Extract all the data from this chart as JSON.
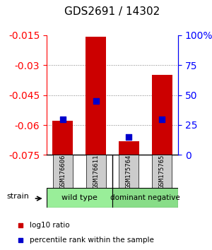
{
  "title": "GDS2691 / 14302",
  "samples": [
    "GSM176606",
    "GSM176611",
    "GSM175764",
    "GSM175765"
  ],
  "log10_ratio": [
    -0.058,
    -0.016,
    -0.068,
    -0.035
  ],
  "percentile_rank": [
    30,
    45,
    15,
    30
  ],
  "ylim_left": [
    -0.075,
    -0.015
  ],
  "ylim_right": [
    0,
    100
  ],
  "yticks_left": [
    -0.075,
    -0.06,
    -0.045,
    -0.03,
    -0.015
  ],
  "yticks_right": [
    0,
    25,
    50,
    75,
    100
  ],
  "bar_color": "#cc0000",
  "blue_color": "#0000cc",
  "bar_width": 0.6,
  "groups": [
    {
      "label": "wild type",
      "samples": [
        0,
        1
      ],
      "color": "#99ee99"
    },
    {
      "label": "dominant negative",
      "samples": [
        2,
        3
      ],
      "color": "#88dd88"
    }
  ],
  "legend_items": [
    {
      "color": "#cc0000",
      "label": "log10 ratio"
    },
    {
      "color": "#0000cc",
      "label": "percentile rank within the sample"
    }
  ],
  "strain_label": "strain",
  "background_color": "#ffffff"
}
